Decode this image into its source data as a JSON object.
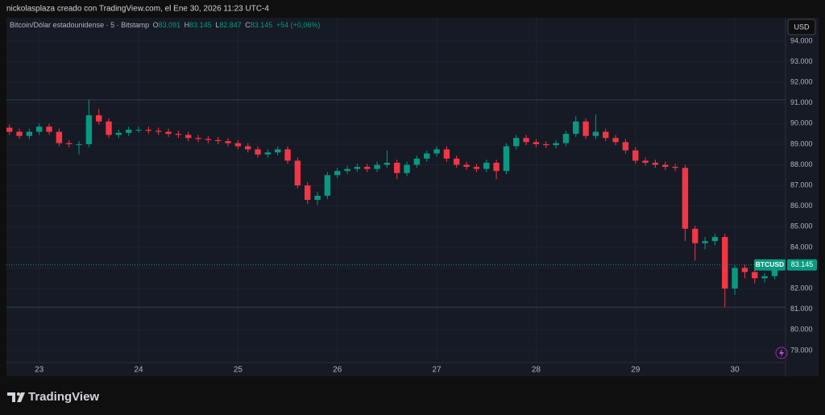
{
  "chart_data": {
    "type": "candlestick",
    "attribution": "nickolasplaza creado con TradingView.com, el Ene 30, 2026 11:23 UTC-4",
    "symbol": "Bitcoin/Dólar estadounidense · 5 · Bitstamp",
    "legend": {
      "open_label": "O",
      "open": "83.091",
      "high_label": "H",
      "high": "83.145",
      "low_label": "L",
      "low": "82.847",
      "close_label": "C",
      "close": "83.145",
      "change": "+54 (+0,06%)"
    },
    "currency": "USD",
    "brand": "TradingView",
    "up_color": "#089981",
    "down_color": "#f23645",
    "grid": true,
    "xlim": [
      22.67,
      30.51
    ],
    "xticks": [
      23,
      24,
      25,
      26,
      27,
      28,
      29,
      30
    ],
    "ylim": [
      78410,
      95130
    ],
    "yticks": [
      {
        "value": 79000,
        "label": "79.000"
      },
      {
        "value": 80000,
        "label": "80.000"
      },
      {
        "value": 81000,
        "label": "81.000"
      },
      {
        "value": 82000,
        "label": "82.000"
      },
      {
        "value": 83000,
        "label": "83.000"
      },
      {
        "value": 84000,
        "label": "84.000"
      },
      {
        "value": 85000,
        "label": "85.000"
      },
      {
        "value": 86000,
        "label": "86.000"
      },
      {
        "value": 87000,
        "label": "87.000"
      },
      {
        "value": 88000,
        "label": "88.000"
      },
      {
        "value": 89000,
        "label": "89.000"
      },
      {
        "value": 90000,
        "label": "90.000"
      },
      {
        "value": 91000,
        "label": "91.000"
      },
      {
        "value": 92000,
        "label": "92.000"
      },
      {
        "value": 93000,
        "label": "93.000"
      },
      {
        "value": 94000,
        "label": "94.000"
      }
    ],
    "hlines": [
      91150,
      81100
    ],
    "last_price": {
      "symbol": "BTCUSD",
      "value": 83145,
      "label": "83.145"
    },
    "x": [
      22.7,
      22.8,
      22.9,
      23.0,
      23.1,
      23.2,
      23.3,
      23.4,
      23.5,
      23.6,
      23.7,
      23.8,
      23.9,
      24.0,
      24.1,
      24.2,
      24.3,
      24.4,
      24.5,
      24.6,
      24.7,
      24.8,
      24.9,
      25.0,
      25.1,
      25.2,
      25.3,
      25.4,
      25.5,
      25.6,
      25.7,
      25.8,
      25.9,
      26.0,
      26.1,
      26.2,
      26.3,
      26.4,
      26.5,
      26.6,
      26.7,
      26.8,
      26.9,
      27.0,
      27.1,
      27.2,
      27.3,
      27.4,
      27.5,
      27.6,
      27.7,
      27.8,
      27.9,
      28.0,
      28.1,
      28.2,
      28.3,
      28.4,
      28.5,
      28.6,
      28.7,
      28.8,
      28.9,
      29.0,
      29.1,
      29.2,
      29.3,
      29.4,
      29.5,
      29.6,
      29.7,
      29.8,
      29.9,
      30.0,
      30.1,
      30.2,
      30.3,
      30.4
    ],
    "open": [
      89800,
      89600,
      89400,
      89600,
      89850,
      89600,
      89050,
      89000,
      89000,
      90400,
      90100,
      89450,
      89550,
      89700,
      89700,
      89650,
      89600,
      89500,
      89450,
      89300,
      89250,
      89200,
      89150,
      89050,
      88900,
      88750,
      88500,
      88600,
      88750,
      88200,
      87000,
      86300,
      86500,
      87500,
      87700,
      87800,
      87900,
      87800,
      88000,
      88100,
      87600,
      88000,
      88300,
      88550,
      88750,
      88300,
      88000,
      87900,
      87800,
      88100,
      87700,
      88900,
      89300,
      89100,
      89000,
      88950,
      89050,
      89500,
      90100,
      89400,
      89600,
      89300,
      89100,
      88700,
      88200,
      88100,
      88000,
      87900,
      87850,
      84900,
      84200,
      84300,
      84500,
      82000,
      83000,
      82800,
      82500,
      82600
    ],
    "high": [
      89950,
      89750,
      89750,
      90000,
      90000,
      89750,
      89200,
      89150,
      91150,
      90700,
      90250,
      89700,
      89850,
      89850,
      89850,
      89800,
      89750,
      89650,
      89600,
      89450,
      89400,
      89350,
      89300,
      89200,
      89050,
      88900,
      88750,
      88900,
      88900,
      88350,
      87150,
      86700,
      87650,
      87850,
      87950,
      88050,
      88050,
      88150,
      88700,
      88250,
      88150,
      88450,
      88700,
      88900,
      88900,
      88450,
      88150,
      88050,
      88250,
      88250,
      89050,
      89450,
      89450,
      89250,
      89150,
      89200,
      89650,
      90350,
      90250,
      90450,
      89750,
      89450,
      89250,
      88850,
      88350,
      88250,
      88150,
      88050,
      88000,
      85050,
      84500,
      84650,
      84650,
      83150,
      83150,
      82950,
      82750,
      83400
    ],
    "low": [
      89450,
      89250,
      89250,
      89450,
      89450,
      88900,
      88850,
      88500,
      88850,
      89950,
      89300,
      89300,
      89400,
      89550,
      89500,
      89450,
      89350,
      89300,
      89150,
      89100,
      89050,
      89000,
      88900,
      88750,
      88600,
      88350,
      88350,
      88450,
      88050,
      86850,
      86100,
      86050,
      86350,
      87350,
      87550,
      87650,
      87650,
      87650,
      87850,
      87300,
      87450,
      87850,
      88150,
      88400,
      88150,
      87850,
      87750,
      87650,
      87650,
      87300,
      87550,
      88750,
      88950,
      88850,
      88800,
      88800,
      88900,
      89350,
      89250,
      89250,
      89150,
      88950,
      88550,
      88050,
      87950,
      87850,
      87750,
      87700,
      84300,
      83350,
      83900,
      84100,
      81100,
      81700,
      82500,
      82250,
      82300,
      82450
    ],
    "close": [
      89600,
      89400,
      89600,
      89850,
      89600,
      89050,
      89000,
      89000,
      90400,
      90100,
      89450,
      89550,
      89700,
      89700,
      89650,
      89600,
      89500,
      89450,
      89300,
      89250,
      89200,
      89150,
      89050,
      88900,
      88750,
      88500,
      88600,
      88750,
      88200,
      87000,
      86300,
      86500,
      87500,
      87700,
      87800,
      87900,
      87800,
      88000,
      88100,
      87600,
      88000,
      88300,
      88550,
      88750,
      88300,
      88000,
      87900,
      87800,
      88100,
      87700,
      88900,
      89300,
      89100,
      89000,
      88950,
      89050,
      89500,
      90100,
      89400,
      89600,
      89300,
      89100,
      88700,
      88200,
      88100,
      88000,
      87900,
      87850,
      84900,
      84200,
      84300,
      84500,
      82000,
      83000,
      82800,
      82500,
      82600,
      83145
    ]
  }
}
